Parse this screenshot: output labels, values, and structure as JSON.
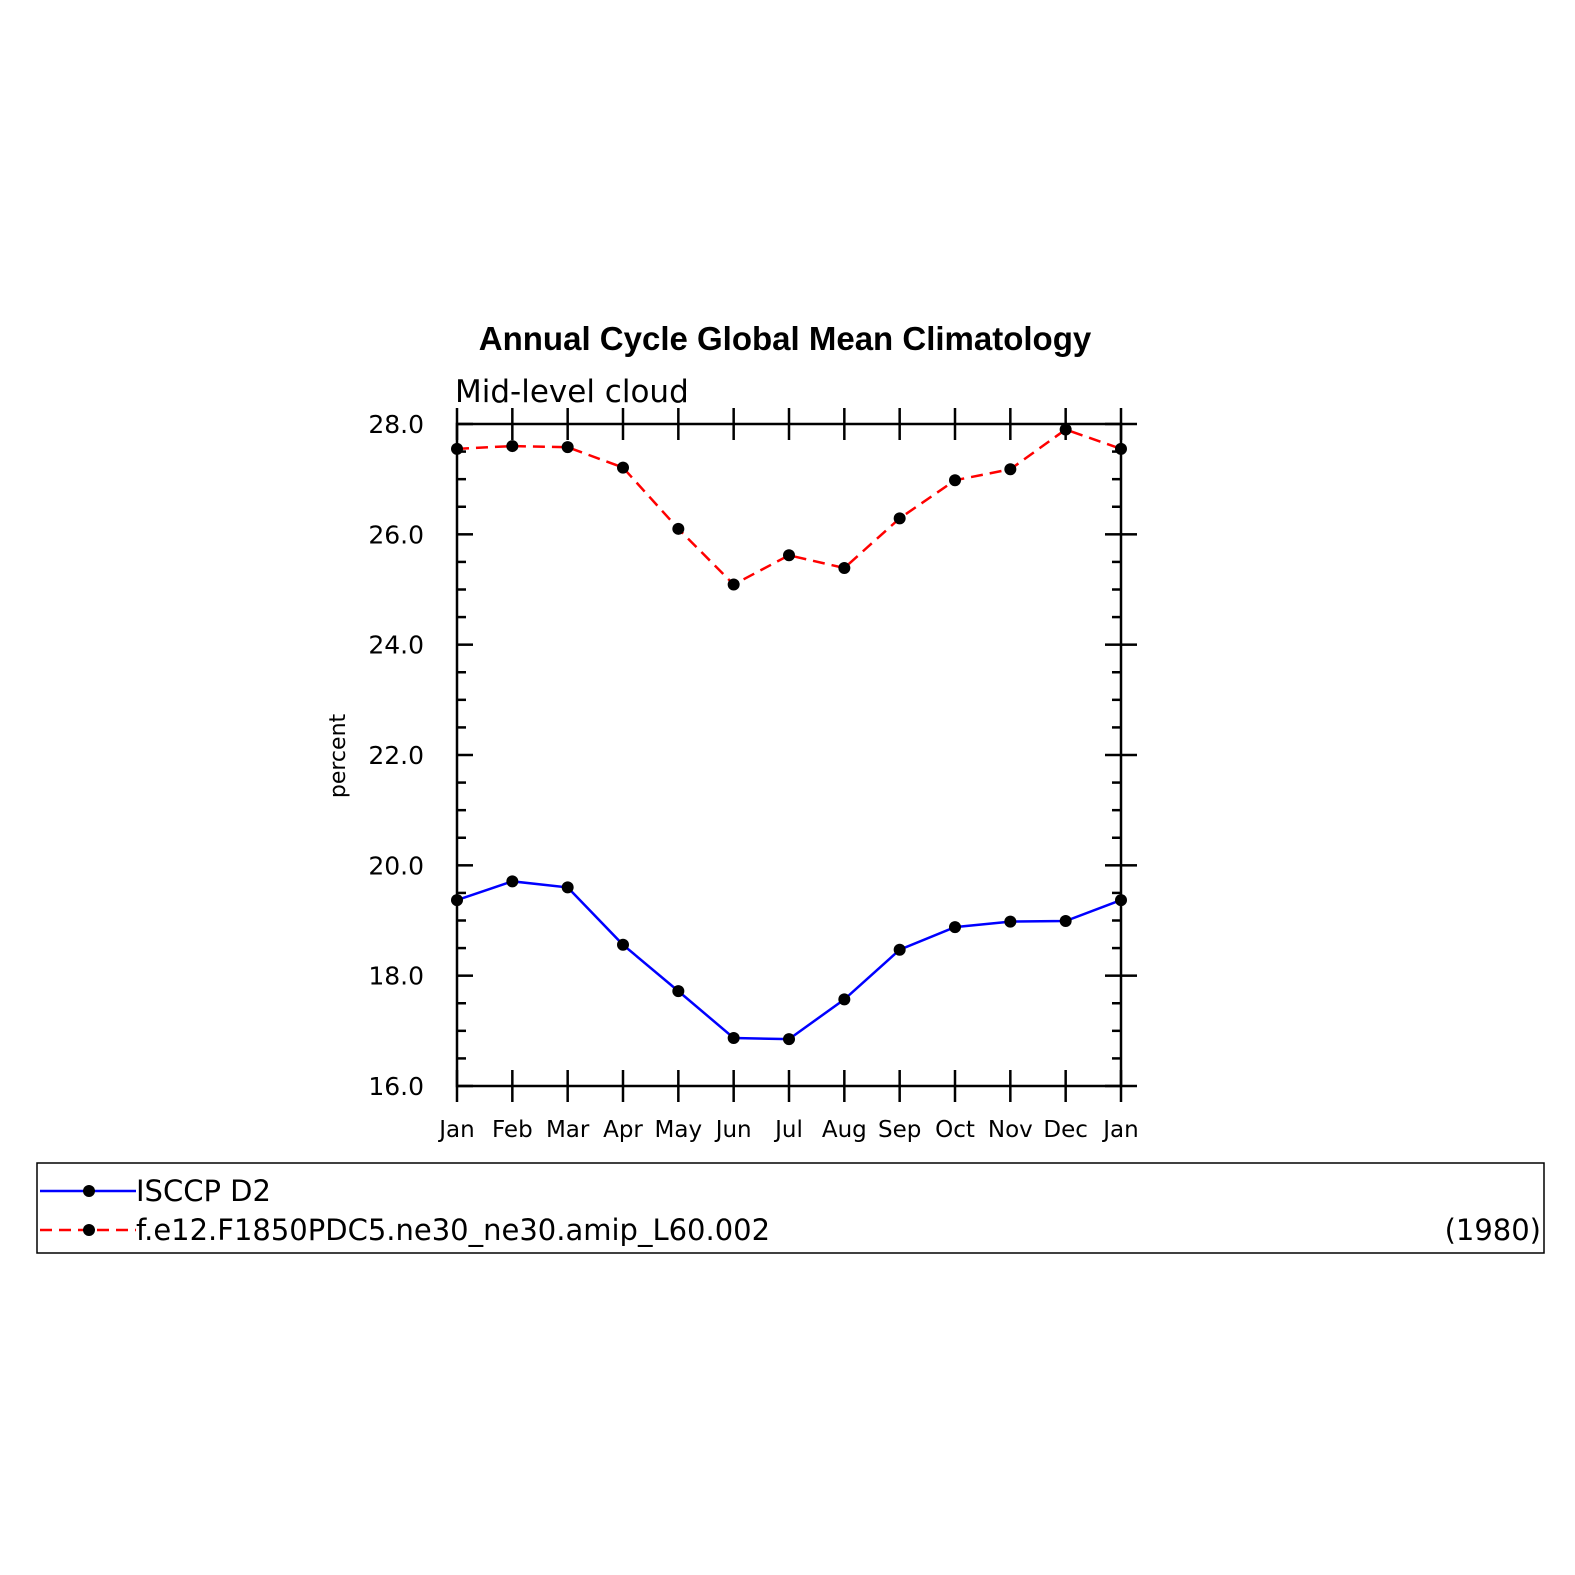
{
  "chart_data": {
    "type": "line",
    "title": "Annual Cycle Global Mean Climatology",
    "subtitle": "Mid-level cloud",
    "ylabel": "percent",
    "xlabel": "",
    "ylim": [
      16.0,
      28.0
    ],
    "yticks": [
      "16.0",
      "18.0",
      "20.0",
      "22.0",
      "24.0",
      "26.0",
      "28.0"
    ],
    "categories": [
      "Jan",
      "Feb",
      "Mar",
      "Apr",
      "May",
      "Jun",
      "Jul",
      "Aug",
      "Sep",
      "Oct",
      "Nov",
      "Dec",
      "Jan"
    ],
    "series": [
      {
        "name": "ISCCP D2",
        "color": "#0000ff",
        "dash": "solid",
        "values": [
          19.37,
          19.71,
          19.6,
          18.56,
          17.72,
          16.87,
          16.85,
          17.57,
          18.47,
          18.88,
          18.98,
          18.99,
          19.37
        ]
      },
      {
        "name": "f.e12.F1850PDC5.ne30_ne30.amip_L60.002",
        "color": "#ff0000",
        "dash": "dashed",
        "values": [
          27.55,
          27.6,
          27.58,
          27.21,
          26.1,
          25.09,
          25.62,
          25.39,
          26.29,
          26.98,
          27.18,
          27.9,
          27.55
        ]
      }
    ],
    "legend_note": "(1980)",
    "legend_position": "bottom"
  }
}
